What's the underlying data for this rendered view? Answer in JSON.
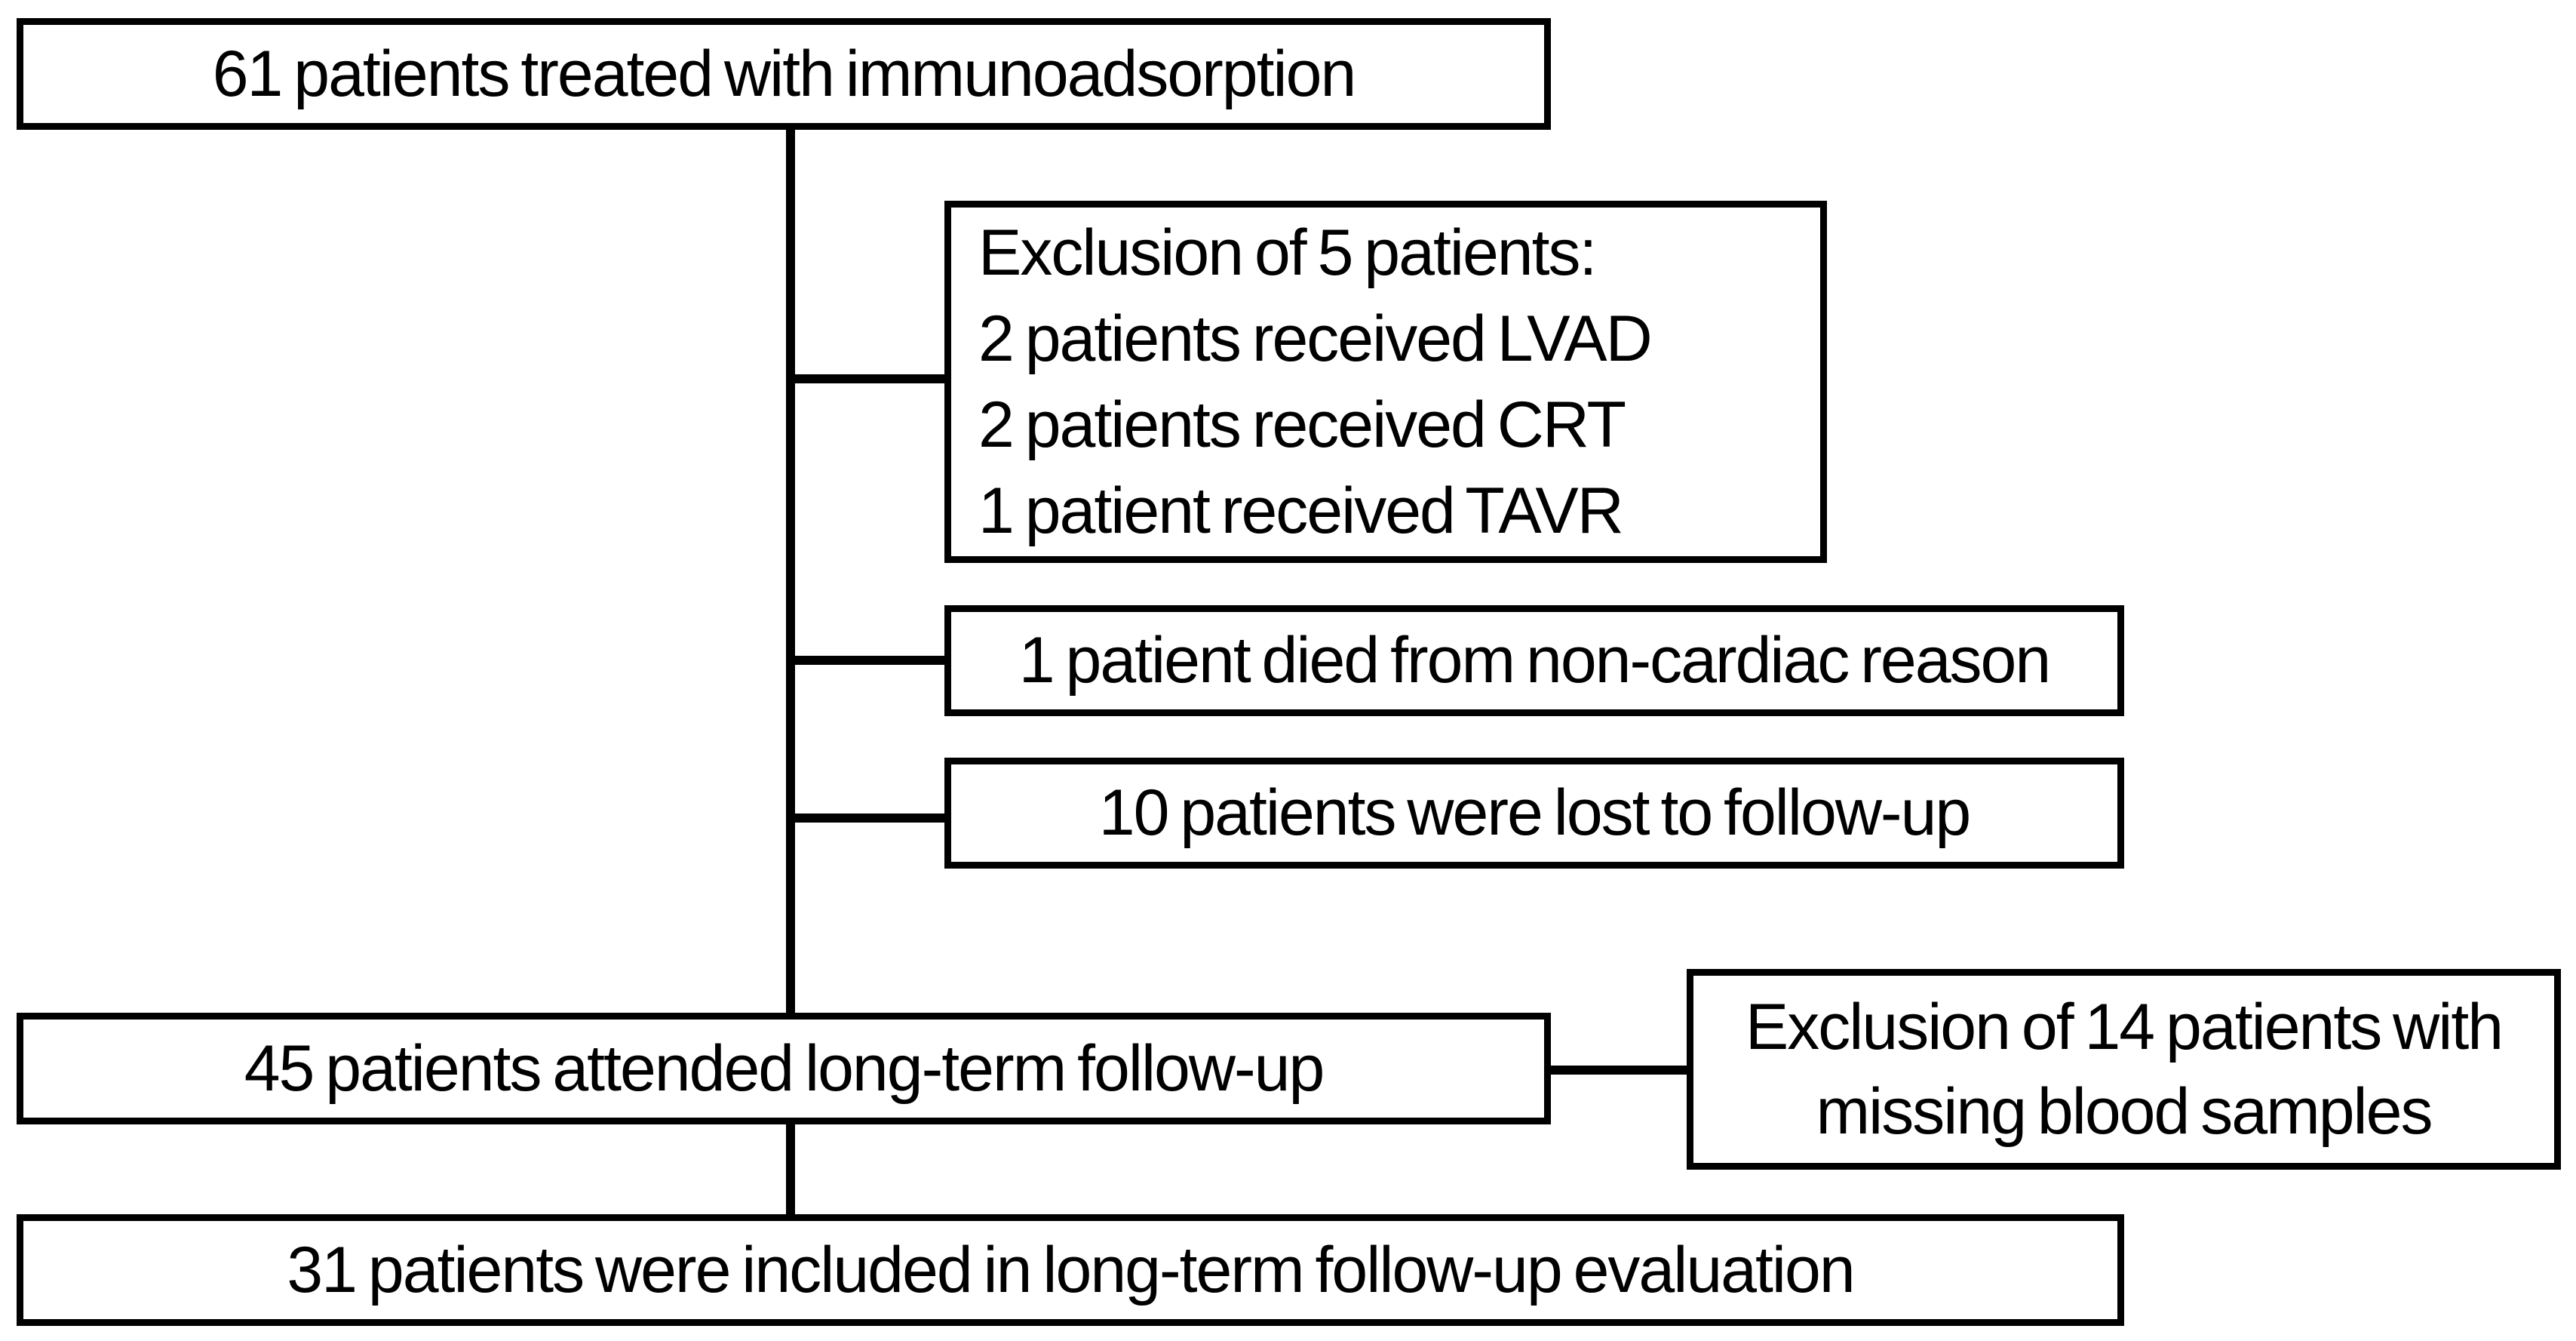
{
  "colors": {
    "border": "#000000",
    "background": "#ffffff",
    "text": "#000000"
  },
  "nodes": {
    "treated": {
      "text": "61 patients treated with immunoadsorption"
    },
    "exclusion5": {
      "lines": [
        "Exclusion of 5 patients:",
        "2 patients received LVAD",
        "2 patients received CRT",
        "1 patient received TAVR"
      ]
    },
    "died": {
      "text": "1 patient died from non-cardiac reason"
    },
    "lost": {
      "text": "10 patients were lost to follow-up"
    },
    "attended": {
      "text": "45 patients attended long-term follow-up"
    },
    "exclusion14": {
      "lines": [
        "Exclusion of 14 patients with",
        "missing blood samples"
      ]
    },
    "included": {
      "text": "31 patients were included in long-term follow-up evaluation"
    }
  }
}
